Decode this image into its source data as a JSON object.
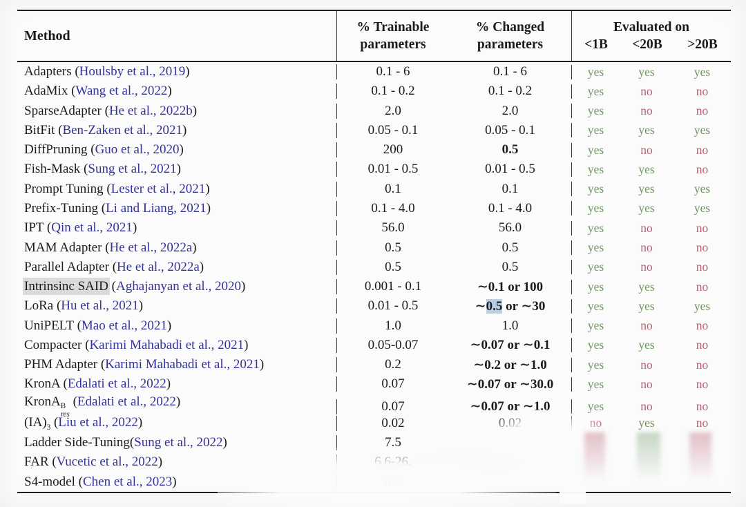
{
  "header": {
    "method": "Method",
    "trainable": [
      "% Trainable",
      "parameters"
    ],
    "changed": [
      "% Changed",
      "parameters"
    ],
    "evaluated_on": "Evaluated on",
    "eval_cols": [
      "<1B",
      "<20B",
      ">20B"
    ]
  },
  "colors": {
    "citation": "#32329a",
    "yes": "#6f9760",
    "no": "#b85f72",
    "highlight_blue": "#b9cfe6",
    "highlight_gray": "#dadada"
  },
  "rows": [
    {
      "name": "Adapters",
      "cite": "Houlsby et al., 2019",
      "trainable": "0.1 - 6",
      "changed": "0.1 - 6",
      "eval": [
        "yes",
        "yes",
        "yes"
      ]
    },
    {
      "name": "AdaMix",
      "cite": "Wang et al., 2022",
      "trainable": "0.1 - 0.2",
      "changed": "0.1 - 0.2",
      "eval": [
        "yes",
        "no",
        "no"
      ]
    },
    {
      "name": "SparseAdapter",
      "cite": "He et al., 2022b",
      "trainable": "2.0",
      "changed": "2.0",
      "eval": [
        "yes",
        "no",
        "no"
      ]
    },
    {
      "name": "BitFit",
      "cite": "Ben-Zaken et al., 2021",
      "trainable": "0.05 - 0.1",
      "changed": "0.05 - 0.1",
      "eval": [
        "yes",
        "yes",
        "yes"
      ]
    },
    {
      "name": "DiffPruning",
      "cite": "Guo et al., 2020",
      "trainable": "200",
      "changed": "0.5",
      "changed_bold": true,
      "eval": [
        "yes",
        "no",
        "no"
      ]
    },
    {
      "name": "Fish-Mask",
      "cite": "Sung et al., 2021",
      "trainable": "0.01 - 0.5",
      "changed": "0.01 - 0.5",
      "eval": [
        "yes",
        "yes",
        "no"
      ]
    },
    {
      "name": "Prompt Tuning",
      "cite": "Lester et al., 2021",
      "trainable": "0.1",
      "changed": "0.1",
      "eval": [
        "yes",
        "yes",
        "yes"
      ]
    },
    {
      "name": "Prefix-Tuning",
      "cite": "Li and Liang, 2021",
      "trainable": "0.1 - 4.0",
      "changed": "0.1 - 4.0",
      "eval": [
        "yes",
        "yes",
        "yes"
      ]
    },
    {
      "name": "IPT",
      "cite": "Qin et al., 2021",
      "trainable": "56.0",
      "changed": "56.0",
      "eval": [
        "yes",
        "no",
        "no"
      ]
    },
    {
      "name": "MAM Adapter",
      "cite": "He et al., 2022a",
      "trainable": "0.5",
      "changed": "0.5",
      "eval": [
        "yes",
        "no",
        "no"
      ]
    },
    {
      "name": "Parallel Adapter",
      "cite": "He et al., 2022a",
      "trainable": "0.5",
      "changed": "0.5",
      "eval": [
        "yes",
        "no",
        "no"
      ]
    },
    {
      "name": "Intrinsinc SAID",
      "name_hl": true,
      "cite": "Aghajanyan et al., 2020",
      "trainable": "0.001 - 0.1",
      "changed": "∼0.1 or 100",
      "changed_bold": true,
      "eval": [
        "yes",
        "yes",
        "no"
      ]
    },
    {
      "name": "LoRa",
      "cite": "Hu et al., 2021",
      "trainable": "0.01 - 0.5",
      "changed_parts": [
        {
          "t": "∼"
        },
        {
          "t": "0.5",
          "hl": true
        },
        {
          "t": " or ∼30"
        }
      ],
      "changed_bold": true,
      "eval": [
        "yes",
        "yes",
        "yes"
      ]
    },
    {
      "name": "UniPELT",
      "cite": "Mao et al., 2021",
      "trainable": "1.0",
      "changed": "1.0",
      "eval": [
        "yes",
        "no",
        "no"
      ]
    },
    {
      "name": "Compacter",
      "cite": "Karimi Mahabadi et al., 2021",
      "trainable": "0.05-0.07",
      "changed": "∼0.07 or ∼0.1",
      "changed_bold": true,
      "eval": [
        "yes",
        "yes",
        "no"
      ]
    },
    {
      "name": "PHM Adapter",
      "cite": "Karimi Mahabadi et al., 2021",
      "trainable": "0.2",
      "changed": "∼0.2 or ∼1.0",
      "changed_bold": true,
      "eval": [
        "yes",
        "no",
        "no"
      ]
    },
    {
      "name": "KronA",
      "cite": "Edalati et al., 2022",
      "trainable": "0.07",
      "changed": "∼0.07 or ∼30.0",
      "changed_bold": true,
      "eval": [
        "yes",
        "no",
        "no"
      ]
    },
    {
      "name": "KronA",
      "sup": "B",
      "sub": "res",
      "cite": "Edalati et al., 2022",
      "trainable": "0.07",
      "changed": "∼0.07 or ∼1.0",
      "changed_bold": true,
      "eval": [
        "yes",
        "no",
        "no"
      ]
    },
    {
      "name": "(IA)",
      "sup": "3",
      "cite": "Liu et al., 2022",
      "trainable": "0.02",
      "changed": "0.02",
      "eval": [
        "no",
        "yes",
        "no"
      ]
    },
    {
      "name": "Ladder Side-Tuning",
      "sep": "",
      "cite": "Sung et al., 2022",
      "trainable": "7.5",
      "changed": "",
      "eval": [
        "",
        "",
        ""
      ]
    },
    {
      "name": "FAR",
      "cite": "Vucetic et al., 2022",
      "trainable": "6.6-26.",
      "changed": "",
      "eval": [
        "",
        "",
        ""
      ]
    },
    {
      "name": "S4-model",
      "cite": "Chen et al., 2023",
      "trainable": "0.5",
      "changed": "",
      "eval": [
        "",
        "",
        ""
      ]
    }
  ]
}
